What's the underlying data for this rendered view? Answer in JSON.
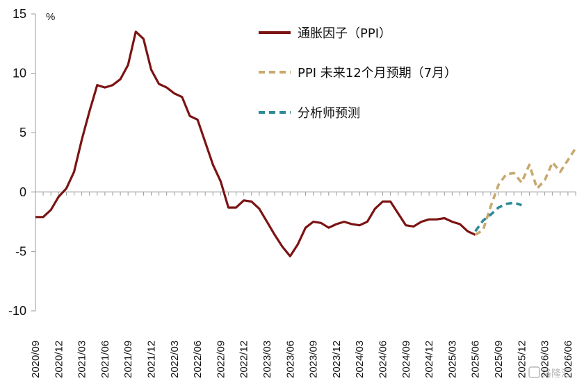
{
  "chart_data": {
    "type": "line",
    "ylabel": "%",
    "ylim": [
      -10,
      15
    ],
    "yticks": [
      15,
      10,
      5,
      0,
      -5,
      -10
    ],
    "x_range": [
      "2020/09",
      "2026/07"
    ],
    "xtick_labels": [
      "2020/09",
      "2020/12",
      "2021/03",
      "2021/06",
      "2021/09",
      "2021/12",
      "2022/03",
      "2022/06",
      "2022/09",
      "2022/12",
      "2023/03",
      "2023/06",
      "2023/09",
      "2023/12",
      "2024/03",
      "2024/06",
      "2024/09",
      "2024/12",
      "2025/03",
      "2025/06",
      "2025/09",
      "2025/12",
      "2026/03",
      "2026/06"
    ],
    "grid": false,
    "legend_position": "top-center",
    "series": [
      {
        "name": "通胀因子（PPI）",
        "color": "#7b1313",
        "style": "solid",
        "points": [
          [
            "2020/09",
            -2.1
          ],
          [
            "2020/10",
            -2.1
          ],
          [
            "2020/11",
            -1.5
          ],
          [
            "2020/12",
            -0.4
          ],
          [
            "2021/01",
            0.3
          ],
          [
            "2021/02",
            1.7
          ],
          [
            "2021/03",
            4.4
          ],
          [
            "2021/04",
            6.8
          ],
          [
            "2021/05",
            9.0
          ],
          [
            "2021/06",
            8.8
          ],
          [
            "2021/07",
            9.0
          ],
          [
            "2021/08",
            9.5
          ],
          [
            "2021/09",
            10.7
          ],
          [
            "2021/10",
            13.5
          ],
          [
            "2021/11",
            12.9
          ],
          [
            "2021/12",
            10.3
          ],
          [
            "2022/01",
            9.1
          ],
          [
            "2022/02",
            8.8
          ],
          [
            "2022/03",
            8.3
          ],
          [
            "2022/04",
            8.0
          ],
          [
            "2022/05",
            6.4
          ],
          [
            "2022/06",
            6.1
          ],
          [
            "2022/07",
            4.2
          ],
          [
            "2022/08",
            2.3
          ],
          [
            "2022/09",
            0.9
          ],
          [
            "2022/10",
            -1.3
          ],
          [
            "2022/11",
            -1.3
          ],
          [
            "2022/12",
            -0.7
          ],
          [
            "2023/01",
            -0.8
          ],
          [
            "2023/02",
            -1.4
          ],
          [
            "2023/03",
            -2.5
          ],
          [
            "2023/04",
            -3.6
          ],
          [
            "2023/05",
            -4.6
          ],
          [
            "2023/06",
            -5.4
          ],
          [
            "2023/07",
            -4.4
          ],
          [
            "2023/08",
            -3.0
          ],
          [
            "2023/09",
            -2.5
          ],
          [
            "2023/10",
            -2.6
          ],
          [
            "2023/11",
            -3.0
          ],
          [
            "2023/12",
            -2.7
          ],
          [
            "2024/01",
            -2.5
          ],
          [
            "2024/02",
            -2.7
          ],
          [
            "2024/03",
            -2.8
          ],
          [
            "2024/04",
            -2.5
          ],
          [
            "2024/05",
            -1.4
          ],
          [
            "2024/06",
            -0.8
          ],
          [
            "2024/07",
            -0.8
          ],
          [
            "2024/08",
            -1.8
          ],
          [
            "2024/09",
            -2.8
          ],
          [
            "2024/10",
            -2.9
          ],
          [
            "2024/11",
            -2.5
          ],
          [
            "2024/12",
            -2.3
          ],
          [
            "2025/01",
            -2.3
          ],
          [
            "2025/02",
            -2.2
          ],
          [
            "2025/03",
            -2.5
          ],
          [
            "2025/04",
            -2.7
          ],
          [
            "2025/05",
            -3.3
          ],
          [
            "2025/06",
            -3.6
          ]
        ]
      },
      {
        "name": "PPI 未来12个月预期（7月）",
        "color": "#c8a96e",
        "style": "dashed",
        "points": [
          [
            "2025/06",
            -3.6
          ],
          [
            "2025/07",
            -3.2
          ],
          [
            "2025/08",
            -1.2
          ],
          [
            "2025/09",
            0.6
          ],
          [
            "2025/10",
            1.5
          ],
          [
            "2025/11",
            1.6
          ],
          [
            "2025/12",
            0.8
          ],
          [
            "2026/01",
            2.3
          ],
          [
            "2026/02",
            0.3
          ],
          [
            "2026/03",
            1.0
          ],
          [
            "2026/04",
            2.5
          ],
          [
            "2026/05",
            1.7
          ],
          [
            "2026/06",
            2.7
          ],
          [
            "2026/07",
            3.7
          ]
        ]
      },
      {
        "name": "分析师预测",
        "color": "#2d8a96",
        "style": "dashed",
        "points": [
          [
            "2025/06",
            -3.3
          ],
          [
            "2025/07",
            -2.4
          ],
          [
            "2025/08",
            -1.9
          ],
          [
            "2025/09",
            -1.3
          ],
          [
            "2025/10",
            -1.0
          ],
          [
            "2025/11",
            -0.9
          ],
          [
            "2025/12",
            -1.1
          ]
        ]
      }
    ]
  },
  "watermark": "格隆汇"
}
